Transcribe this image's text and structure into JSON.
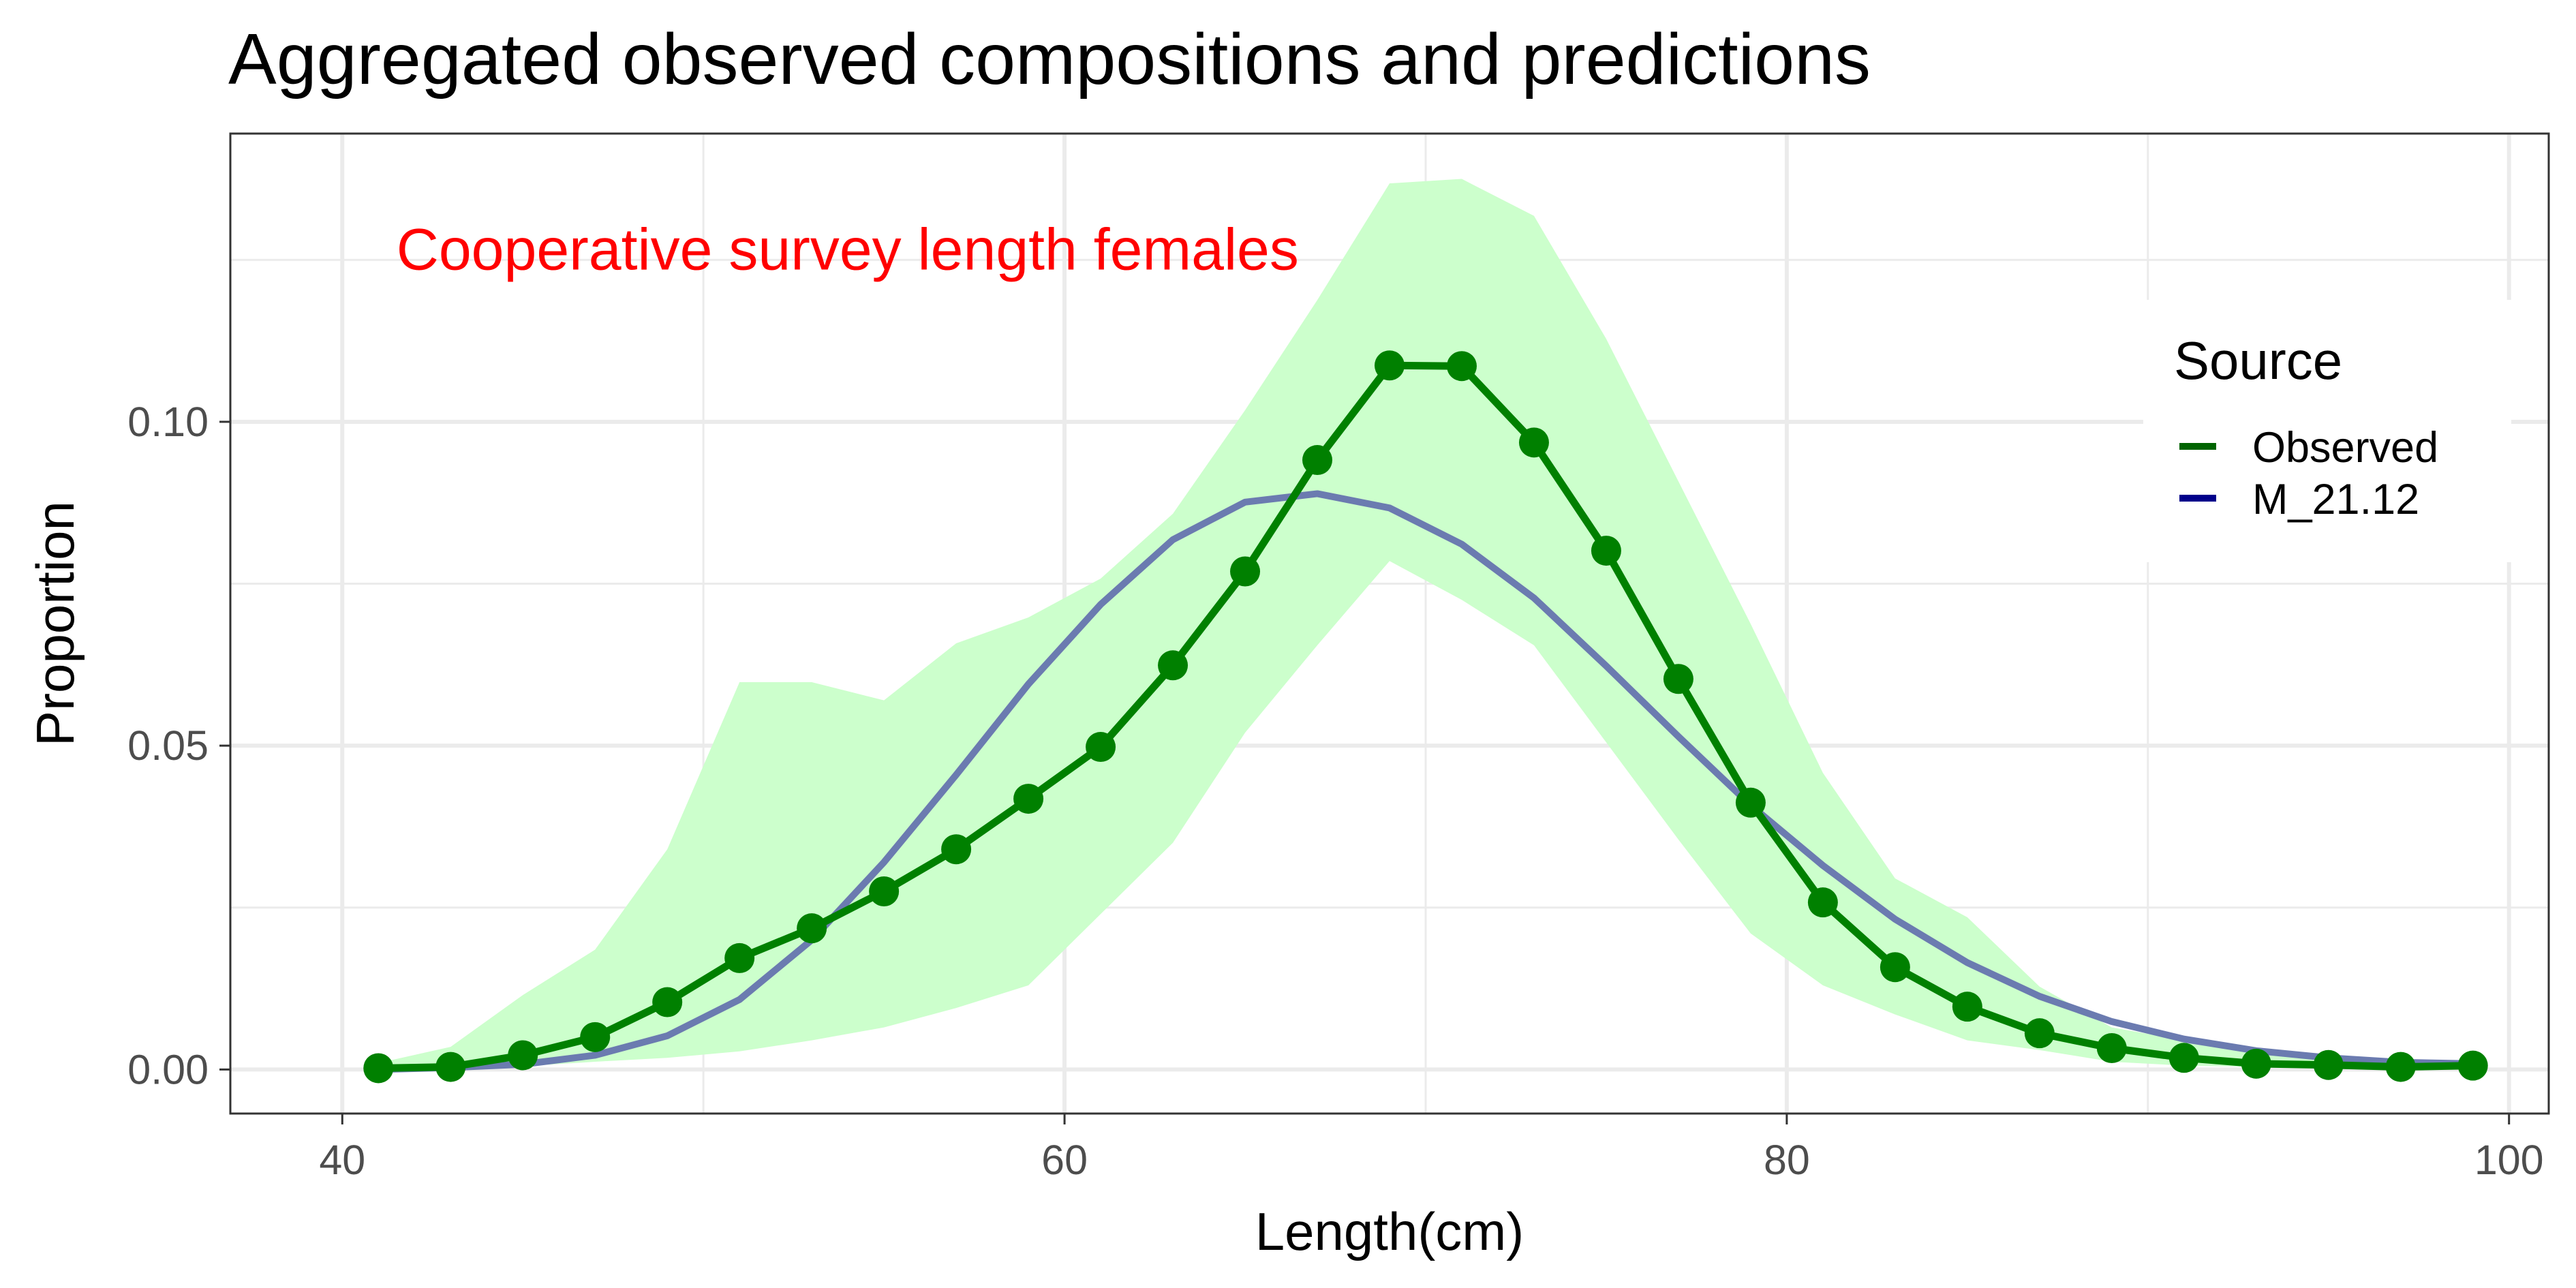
{
  "chart_data": {
    "type": "line",
    "title": "Aggregated observed compositions and predictions",
    "xlabel": "Length(cm)",
    "ylabel": "Proportion",
    "xlim": [
      36.9,
      101.1
    ],
    "ylim": [
      -0.0068,
      0.1445
    ],
    "x_ticks": [
      40,
      60,
      80,
      100
    ],
    "x_tick_labels": [
      "40",
      "60",
      "80",
      "100"
    ],
    "x_minor": [
      50,
      70,
      90
    ],
    "y_ticks": [
      0.0,
      0.05,
      0.1
    ],
    "y_tick_labels": [
      "0.00",
      "0.05",
      "0.10"
    ],
    "y_minor": [
      0.025,
      0.075,
      0.125
    ],
    "grid": true,
    "annotation": {
      "text": "Cooperative survey length females",
      "color": "#ff0000",
      "x": 41.5,
      "y": 0.1235
    },
    "legend": {
      "title": "Source",
      "position": "right",
      "entries": [
        {
          "label": "Observed",
          "color": "#006400"
        },
        {
          "label": "M_21.12",
          "color": "#00008b"
        }
      ]
    },
    "x": [
      41,
      43,
      45,
      47,
      49,
      51,
      53,
      55,
      57,
      59,
      61,
      63,
      65,
      67,
      69,
      71,
      73,
      75,
      77,
      79,
      81,
      83,
      85,
      87,
      89,
      91,
      93,
      95,
      97,
      99
    ],
    "band": {
      "color": "#ccffcc",
      "lower": [
        0.0,
        0.0,
        0.0005,
        0.0012,
        0.0018,
        0.0028,
        0.0045,
        0.0065,
        0.0095,
        0.013,
        0.024,
        0.035,
        0.052,
        0.0655,
        0.0785,
        0.0725,
        0.0655,
        0.0505,
        0.0355,
        0.021,
        0.013,
        0.0085,
        0.0045,
        0.003,
        0.0012,
        0.0006,
        0.0004,
        0.0002,
        0.0001,
        0.0001
      ],
      "upper": [
        0.001,
        0.0035,
        0.0115,
        0.0185,
        0.034,
        0.0598,
        0.0598,
        0.057,
        0.0658,
        0.0698,
        0.0758,
        0.0858,
        0.1018,
        0.1188,
        0.1368,
        0.1375,
        0.1318,
        0.1128,
        0.0908,
        0.0688,
        0.0458,
        0.0295,
        0.0235,
        0.0128,
        0.0065,
        0.0045,
        0.003,
        0.002,
        0.0015,
        0.001
      ]
    },
    "series": [
      {
        "name": "Observed",
        "color": "#008000",
        "markers": true,
        "values": [
          0.0002,
          0.0004,
          0.0022,
          0.005,
          0.0104,
          0.0172,
          0.0218,
          0.0275,
          0.034,
          0.0418,
          0.0498,
          0.0624,
          0.0769,
          0.0941,
          0.1087,
          0.1086,
          0.0968,
          0.0801,
          0.0603,
          0.0412,
          0.0258,
          0.0158,
          0.0097,
          0.0056,
          0.0033,
          0.0018,
          0.0009,
          0.0007,
          0.0004,
          0.0006
        ]
      },
      {
        "name": "M_21.12",
        "color": "#6b7bb0",
        "markers": false,
        "values": [
          0.0,
          0.0003,
          0.0008,
          0.0022,
          0.0052,
          0.0108,
          0.02,
          0.032,
          0.0455,
          0.0595,
          0.0718,
          0.0818,
          0.0876,
          0.0889,
          0.0867,
          0.0811,
          0.0728,
          0.0623,
          0.0514,
          0.0408,
          0.0315,
          0.0232,
          0.0165,
          0.0113,
          0.0074,
          0.0047,
          0.0029,
          0.0018,
          0.0011,
          0.0009
        ]
      }
    ]
  }
}
